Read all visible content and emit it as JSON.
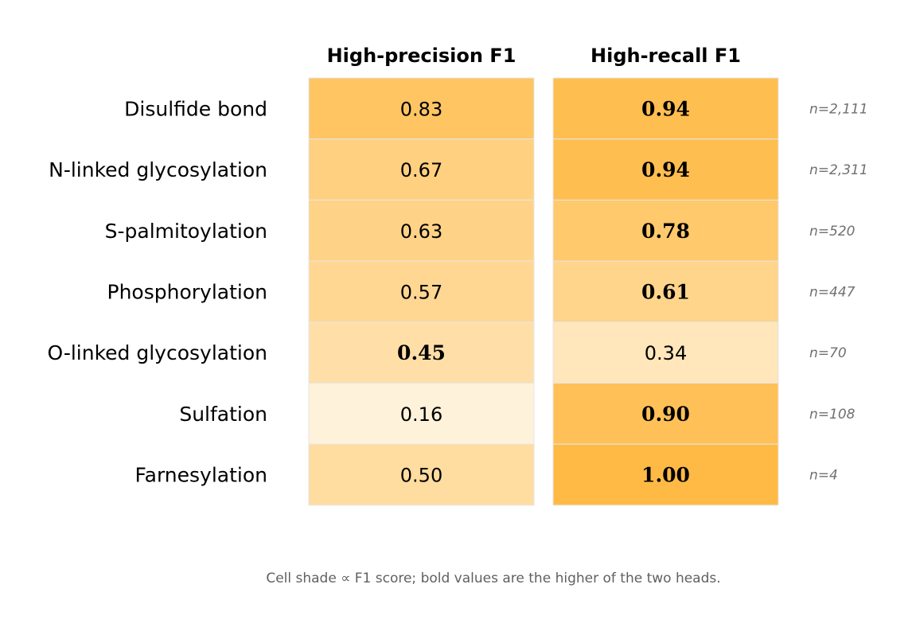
{
  "chart_data": {
    "type": "heatmap",
    "columns": [
      "High-precision F1",
      "High-recall F1"
    ],
    "rows": [
      {
        "label": "Disulfide bond",
        "precision_f1": 0.83,
        "recall_f1": 0.94,
        "n": "n=2,111"
      },
      {
        "label": "N-linked glycosylation",
        "precision_f1": 0.67,
        "recall_f1": 0.94,
        "n": "n=2,311"
      },
      {
        "label": "S-palmitoylation",
        "precision_f1": 0.63,
        "recall_f1": 0.78,
        "n": "n=520"
      },
      {
        "label": "Phosphorylation",
        "precision_f1": 0.57,
        "recall_f1": 0.61,
        "n": "n=447"
      },
      {
        "label": "O-linked glycosylation",
        "precision_f1": 0.45,
        "recall_f1": 0.34,
        "n": "n=70"
      },
      {
        "label": "Sulfation",
        "precision_f1": 0.16,
        "recall_f1": 0.9,
        "n": "n=108"
      },
      {
        "label": "Farnesylation",
        "precision_f1": 0.5,
        "recall_f1": 1.0,
        "n": "n=4"
      }
    ],
    "value_labels": [
      [
        "0.83",
        "0.94"
      ],
      [
        "0.67",
        "0.94"
      ],
      [
        "0.63",
        "0.78"
      ],
      [
        "0.57",
        "0.61"
      ],
      [
        "0.45",
        "0.34"
      ],
      [
        "0.16",
        "0.90"
      ],
      [
        "0.50",
        "1.00"
      ]
    ],
    "bold_rule": "higher of the two heads is bold",
    "color_scale": {
      "low": "#fffdf8",
      "high": "#ffba45"
    },
    "cell_border_color": "#e6e6e6",
    "caption": "Cell shade ∝ F1 score; bold values are the higher of the two heads."
  }
}
